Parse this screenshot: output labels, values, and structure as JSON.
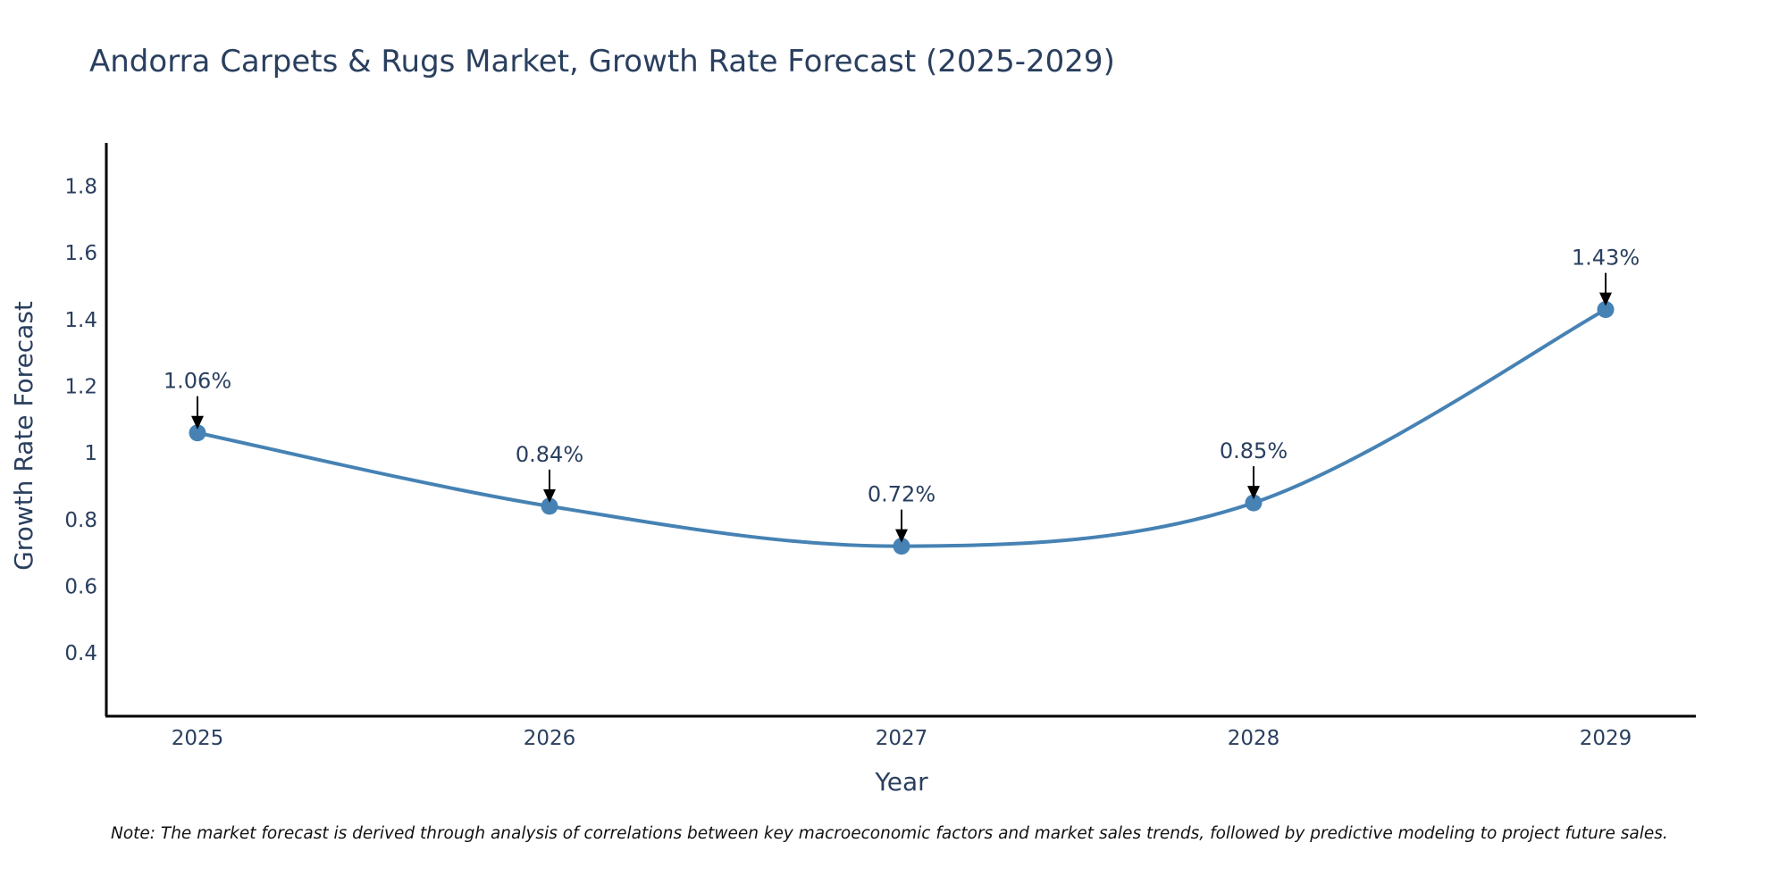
{
  "chart_data": {
    "type": "line",
    "title": "Andorra Carpets & Rugs Market, Growth Rate Forecast (2025-2029)",
    "xlabel": "Year",
    "ylabel": "Growth Rate Forecast",
    "categories": [
      "2025",
      "2026",
      "2027",
      "2028",
      "2029"
    ],
    "values": [
      1.06,
      0.84,
      0.72,
      0.85,
      1.43
    ],
    "data_labels": [
      "1.06%",
      "0.84%",
      "0.72%",
      "0.85%",
      "1.43%"
    ],
    "y_ticks": [
      0.4,
      0.6,
      0.8,
      1.0,
      1.2,
      1.4,
      1.6,
      1.8
    ],
    "y_tick_labels": [
      "0.4",
      "0.6",
      "0.8",
      "1",
      "1.2",
      "1.4",
      "1.6",
      "1.8"
    ],
    "ylim": [
      0.21,
      1.93
    ],
    "grid": false,
    "line_shape": "spline",
    "series_color": "#4682b4"
  },
  "note": "Note: The market forecast is derived through analysis of correlations between key macroeconomic factors and market sales trends, followed by predictive modeling to project future sales."
}
